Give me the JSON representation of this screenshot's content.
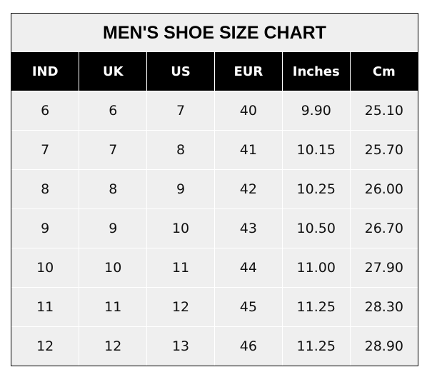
{
  "title": "MEN'S SHOE SIZE CHART",
  "headers": [
    "IND",
    "UK",
    "US",
    "EUR",
    "Inches",
    "Cm"
  ],
  "rows": [
    [
      "6",
      "6",
      "7",
      "40",
      "9.90",
      "25.10"
    ],
    [
      "7",
      "7",
      "8",
      "41",
      "10.15",
      "25.70"
    ],
    [
      "8",
      "8",
      "9",
      "42",
      "10.25",
      "26.00"
    ],
    [
      "9",
      "9",
      "10",
      "43",
      "10.50",
      "26.70"
    ],
    [
      "10",
      "10",
      "11",
      "44",
      "11.00",
      "27.90"
    ],
    [
      "11",
      "11",
      "12",
      "45",
      "11.25",
      "28.30"
    ],
    [
      "12",
      "12",
      "13",
      "46",
      "11.25",
      "28.90"
    ]
  ],
  "colors": {
    "header_bg": "#000000",
    "cell_bg": "#efefef"
  }
}
